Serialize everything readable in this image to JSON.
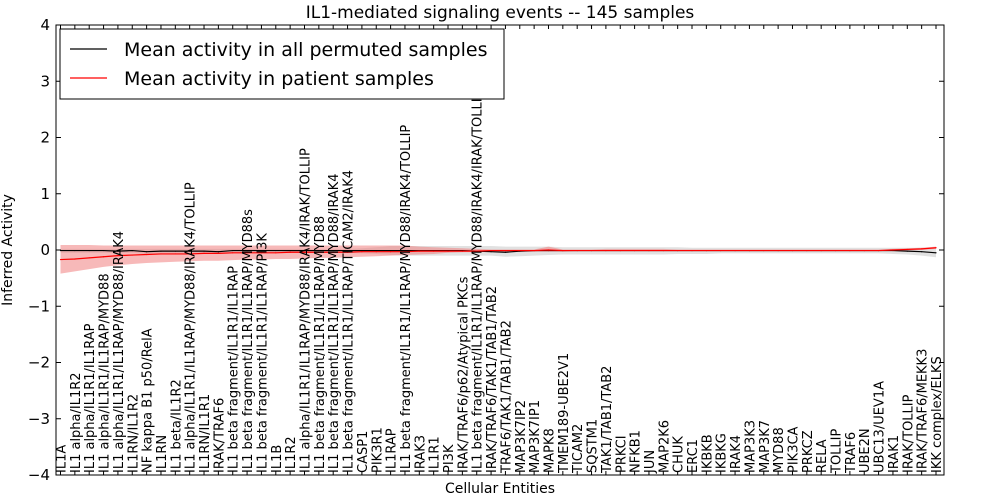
{
  "chart_data": {
    "type": "line",
    "title": "IL1-mediated signaling events -- 145 samples",
    "xlabel": "Cellular Entities",
    "ylabel": "Inferred Activity",
    "ylim": [
      -4,
      4
    ],
    "yticks": [
      "−4",
      "−3",
      "−2",
      "−1",
      "0",
      "1",
      "2",
      "3",
      "4"
    ],
    "legend_position": "top-left",
    "colors": {
      "permuted": "#000000",
      "patient": "#ff0000",
      "permuted_band": "#c8c8c8",
      "patient_band": "#f08080"
    },
    "categories": [
      "IL1A",
      "IL1 alpha/IL1R2",
      "IL1 alpha/IL1R1/IL1RAP",
      "IL1 alpha/IL1R1/IL1RAP/MYD88",
      "IL1 alpha/IL1R1/IL1RAP/MYD88/IRAK4",
      "IL1RN/IL1R2",
      "NF kappa B1 p50/RelA",
      "IL1RN",
      "IL1 beta/IL1R2",
      "IL1 alpha/IL1R1/IL1RAP/MYD88/IRAK4/TOLLIP",
      "IL1RN/IL1R1",
      "IRAK/TRAF6",
      "IL1 beta fragment/IL1R1/IL1RAP",
      "IL1 beta fragment/IL1R1/IL1RAP/MYD88s",
      "IL1 beta fragment/IL1R1/IL1RAP/PI3K",
      "IL1B",
      "IL1R2",
      "IL1 alpha/IL1R1/IL1RAP/MYD88/IRAK4/IRAK/TOLLIP",
      "IL1 beta fragment/IL1R1/IL1RAP/MYD88",
      "IL1 beta fragment/IL1R1/IL1RAP/MYD88/IRAK4",
      "IL1 beta fragment/IL1R1/IL1RAP/TICAM2/IRAK4",
      "CASP1",
      "PIK3R1",
      "IL1RAP",
      "IL1 beta fragment/IL1R1/IL1RAP/MYD88/IRAK4/TOLLIP",
      "IRAK3",
      "IL1R1",
      "PI3K",
      "IRAK/TRAF6/p62/Atypical PKCs",
      "IL1 beta fragment/IL1R1/IL1RAP/MYD88/IRAK4/IRAK/TOLLIP",
      "IRAK/TRAF6/TAK1/TAB1/TAB2",
      "TRAF6/TAK1/TAB1/TAB2",
      "MAP3K7IP2",
      "MAP3K7IP1",
      "MAPK8",
      "TMEM189-UBE2V1",
      "TICAM2",
      "SQSTM1",
      "TAK1/TAB1/TAB2",
      "PRKCI",
      "NFKB1",
      "JUN",
      "MAP2K6",
      "CHUK",
      "ERC1",
      "IKBKB",
      "IKBKG",
      "IRAK4",
      "MAP3K3",
      "MAP3K7",
      "MYD88",
      "PIK3CA",
      "PRKCZ",
      "RELA",
      "TOLLIP",
      "TRAF6",
      "UBE2N",
      "UBC13/UEV1A",
      "IRAK1",
      "IRAK/TOLLIP",
      "IRAK/TRAF6/MEKK3",
      "IKK complex/ELKS"
    ],
    "series": [
      {
        "name": "Mean activity in all permuted samples",
        "color": "#000000",
        "values": [
          -0.01,
          -0.01,
          -0.01,
          -0.01,
          -0.02,
          -0.01,
          -0.03,
          -0.02,
          -0.02,
          -0.02,
          -0.02,
          -0.03,
          -0.01,
          -0.01,
          -0.01,
          -0.01,
          -0.01,
          -0.01,
          -0.01,
          -0.01,
          -0.01,
          -0.01,
          -0.01,
          -0.01,
          -0.01,
          -0.01,
          -0.01,
          -0.01,
          -0.01,
          -0.02,
          -0.03,
          -0.04,
          -0.02,
          -0.01,
          -0.01,
          -0.01,
          -0.01,
          -0.01,
          -0.01,
          -0.01,
          -0.01,
          -0.01,
          -0.01,
          -0.01,
          -0.01,
          -0.01,
          -0.01,
          -0.01,
          -0.01,
          -0.01,
          -0.01,
          -0.01,
          -0.01,
          -0.01,
          -0.01,
          -0.01,
          -0.01,
          -0.01,
          -0.01,
          -0.02,
          -0.03,
          -0.05
        ],
        "lower": [
          -0.05,
          -0.05,
          -0.05,
          -0.05,
          -0.06,
          -0.05,
          -0.07,
          -0.06,
          -0.06,
          -0.06,
          -0.06,
          -0.07,
          -0.05,
          -0.05,
          -0.05,
          -0.05,
          -0.05,
          -0.05,
          -0.05,
          -0.05,
          -0.05,
          -0.06,
          -0.07,
          -0.09,
          -0.1,
          -0.1,
          -0.1,
          -0.1,
          -0.1,
          -0.1,
          -0.1,
          -0.12,
          -0.11,
          -0.1,
          -0.09,
          -0.08,
          -0.08,
          -0.08,
          -0.08,
          -0.08,
          -0.08,
          -0.08,
          -0.08,
          -0.07,
          -0.07,
          -0.07,
          -0.06,
          -0.06,
          -0.06,
          -0.06,
          -0.06,
          -0.06,
          -0.06,
          -0.06,
          -0.06,
          -0.06,
          -0.06,
          -0.06,
          -0.07,
          -0.08,
          -0.1,
          -0.13
        ],
        "upper": [
          0.02,
          0.02,
          0.02,
          0.02,
          0.02,
          0.02,
          0.02,
          0.02,
          0.02,
          0.02,
          0.02,
          0.02,
          0.02,
          0.02,
          0.02,
          0.02,
          0.02,
          0.02,
          0.02,
          0.02,
          0.02,
          0.03,
          0.05,
          0.07,
          0.07,
          0.07,
          0.07,
          0.07,
          0.07,
          0.07,
          0.07,
          0.06,
          0.06,
          0.06,
          0.06,
          0.05,
          0.05,
          0.05,
          0.05,
          0.05,
          0.05,
          0.05,
          0.05,
          0.05,
          0.04,
          0.04,
          0.04,
          0.04,
          0.04,
          0.04,
          0.04,
          0.04,
          0.04,
          0.04,
          0.04,
          0.04,
          0.04,
          0.04,
          0.04,
          0.04,
          0.04,
          0.04
        ]
      },
      {
        "name": "Mean activity in patient samples",
        "color": "#ff0000",
        "values": [
          -0.17,
          -0.16,
          -0.14,
          -0.12,
          -0.1,
          -0.09,
          -0.08,
          -0.07,
          -0.07,
          -0.07,
          -0.06,
          -0.06,
          -0.05,
          -0.05,
          -0.05,
          -0.05,
          -0.04,
          -0.04,
          -0.04,
          -0.04,
          -0.04,
          -0.03,
          -0.03,
          -0.03,
          -0.03,
          -0.02,
          -0.02,
          -0.02,
          -0.02,
          -0.02,
          -0.01,
          -0.01,
          -0.01,
          -0.01,
          0.0,
          -0.01,
          -0.01,
          -0.01,
          -0.01,
          -0.01,
          -0.01,
          -0.01,
          -0.01,
          -0.01,
          -0.01,
          -0.01,
          -0.01,
          -0.01,
          -0.01,
          -0.01,
          -0.01,
          -0.01,
          -0.01,
          -0.01,
          -0.01,
          -0.01,
          -0.01,
          -0.01,
          0.0,
          0.01,
          0.02,
          0.04
        ],
        "lower": [
          -0.42,
          -0.38,
          -0.34,
          -0.3,
          -0.27,
          -0.25,
          -0.23,
          -0.22,
          -0.21,
          -0.2,
          -0.19,
          -0.19,
          -0.18,
          -0.17,
          -0.17,
          -0.16,
          -0.16,
          -0.15,
          -0.14,
          -0.14,
          -0.13,
          -0.12,
          -0.11,
          -0.1,
          -0.09,
          -0.08,
          -0.07,
          -0.05,
          -0.04,
          -0.04,
          -0.03,
          -0.03,
          -0.03,
          -0.03,
          -0.03,
          -0.03,
          -0.02,
          -0.02,
          -0.02,
          -0.02,
          -0.02,
          -0.02,
          -0.02,
          -0.02,
          -0.02,
          -0.02,
          -0.02,
          -0.02,
          -0.02,
          -0.02,
          -0.02,
          -0.02,
          -0.02,
          -0.02,
          -0.02,
          -0.02,
          -0.02,
          -0.02,
          -0.02,
          -0.01,
          0.0,
          0.02
        ],
        "upper": [
          0.09,
          0.09,
          0.09,
          0.08,
          0.08,
          0.08,
          0.08,
          0.08,
          0.08,
          0.08,
          0.08,
          0.08,
          0.08,
          0.08,
          0.08,
          0.08,
          0.08,
          0.08,
          0.08,
          0.08,
          0.08,
          0.08,
          0.08,
          0.08,
          0.08,
          0.06,
          0.05,
          0.04,
          0.03,
          0.02,
          0.01,
          0.01,
          0.01,
          0.01,
          0.06,
          0.01,
          0.01,
          0.01,
          0.02,
          0.02,
          0.02,
          0.02,
          0.02,
          0.01,
          0.01,
          0.01,
          0.01,
          0.01,
          0.01,
          0.01,
          0.01,
          0.01,
          0.01,
          0.01,
          0.01,
          0.01,
          0.01,
          0.01,
          0.02,
          0.03,
          0.04,
          0.06
        ]
      }
    ]
  }
}
